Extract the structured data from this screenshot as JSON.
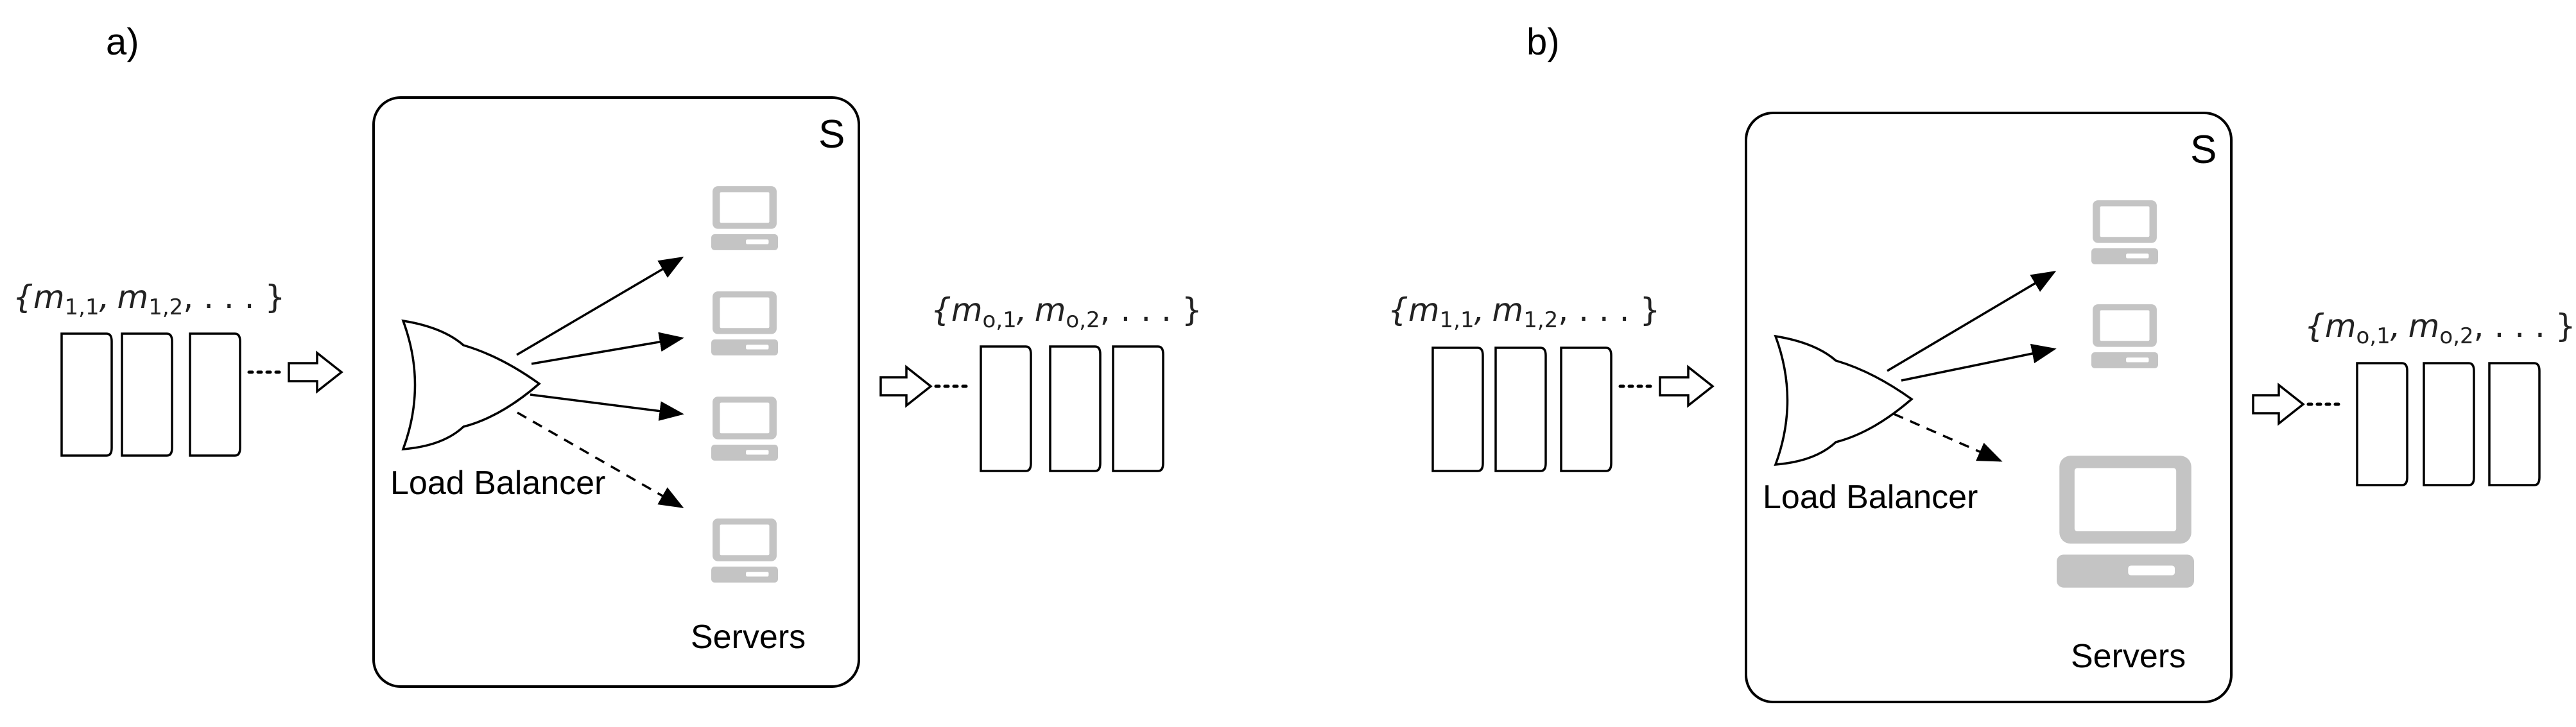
{
  "panel_a": {
    "label": "a)",
    "system_label": "S",
    "input_messages": "{m1,1, m1,2, . . . }",
    "input_messages_parts": {
      "m": "m",
      "sub1": "1,1",
      "sep": ",",
      "sub2": "1,2",
      "tail": ", . . . }",
      "open": "{"
    },
    "output_messages": "{mo,1, mo,2, . . . }",
    "output_messages_parts": {
      "m": "m",
      "sub1": "o,1",
      "sep": ",",
      "sub2": "o,2",
      "tail": ", . . . }",
      "open": "{"
    },
    "load_balancer_label": "Load Balancer",
    "servers_label": "Servers",
    "server_count": 4,
    "active_connections": 3,
    "dashed_connections": 1
  },
  "panel_b": {
    "label": "b)",
    "system_label": "S",
    "input_messages": "{m1,1, m1,2, . . . }",
    "input_messages_parts": {
      "m": "m",
      "sub1": "1,1",
      "sep": ",",
      "sub2": "1,2",
      "tail": ", . . . }",
      "open": "{"
    },
    "output_messages": "{mo,1, mo,2, . . . }",
    "output_messages_parts": {
      "m": "m",
      "sub1": "o,1",
      "sep": ",",
      "sub2": "o,2",
      "tail": ", . . . }",
      "open": "{"
    },
    "load_balancer_label": "Load Balancer",
    "servers_label": "Servers",
    "server_count": 3,
    "active_connections": 2,
    "dashed_connections": 1
  },
  "icons": {
    "server": "computer-monitor-icon",
    "load_balancer": "or-gate-shape-icon"
  }
}
